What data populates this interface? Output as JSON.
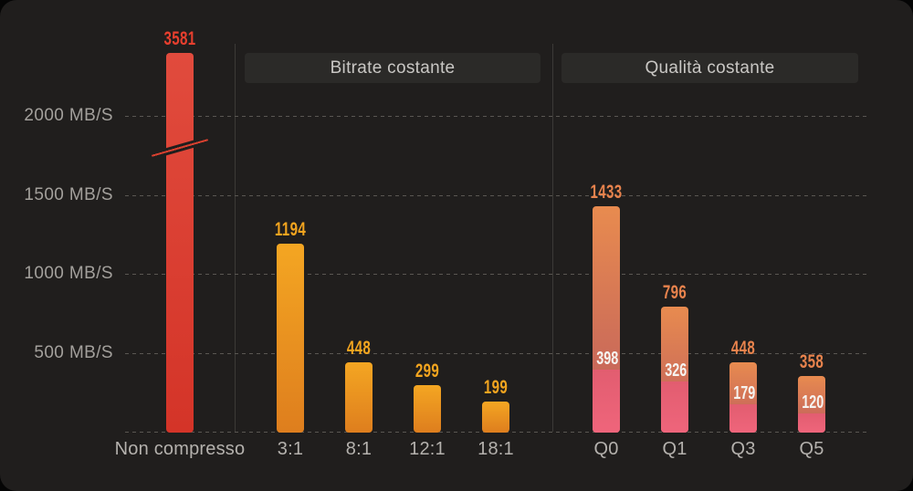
{
  "chart_data": {
    "type": "bar",
    "title": "",
    "unit": "MB/S",
    "legend": "none",
    "grid": "dashed-horizontal",
    "y_axis": {
      "ylim": [
        0,
        2450
      ],
      "ticks": [
        {
          "value": 500,
          "label": "500 MB/S"
        },
        {
          "value": 1000,
          "label": "1000 MB/S"
        },
        {
          "value": 1500,
          "label": "1500 MB/S"
        },
        {
          "value": 2000,
          "label": "2000 MB/S"
        }
      ],
      "axis_break": {
        "present": true,
        "on_bar": "Non compresso",
        "break_between": [
          1750,
          1850
        ]
      }
    },
    "sections": [
      {
        "label": "",
        "bars": [
          {
            "label": "Non compresso",
            "value": 3581,
            "palette": "red",
            "axis_break": true
          }
        ]
      },
      {
        "label": "Bitrate costante",
        "bars": [
          {
            "label": "3:1",
            "value": 1194,
            "palette": "amber"
          },
          {
            "label": "8:1",
            "value": 448,
            "palette": "amber"
          },
          {
            "label": "12:1",
            "value": 299,
            "palette": "amber"
          },
          {
            "label": "18:1",
            "value": 199,
            "palette": "amber"
          }
        ]
      },
      {
        "label": "Qualità costante",
        "bars": [
          {
            "label": "Q0",
            "value": 1433,
            "sub_value": 398,
            "palette": "coral"
          },
          {
            "label": "Q1",
            "value": 796,
            "sub_value": 326,
            "palette": "coral"
          },
          {
            "label": "Q3",
            "value": 448,
            "sub_value": 179,
            "palette": "coral"
          },
          {
            "label": "Q5",
            "value": 358,
            "sub_value": 120,
            "palette": "coral"
          }
        ]
      }
    ],
    "palettes": {
      "red": {
        "top": "#e14b3d",
        "bottom": "#d43428",
        "label": "#e73f2e"
      },
      "amber": {
        "top": "#f4a622",
        "bottom": "#de7e1e",
        "label": "#f3a51f"
      },
      "coral": {
        "top": "#e88b4f",
        "bottom": "#bd5c5e",
        "label": "#e8834d",
        "sub_top": "#e25d70",
        "sub_bottom": "#ef657b",
        "sub_label": "#f6f3f0"
      }
    },
    "colors": {
      "background": "#201e1d",
      "gridline": "#5a5752",
      "divider": "#3c3a37",
      "header_bg": "#2b2a28",
      "header_text": "#c9c7c4",
      "y_tick_text": "#a3a09c",
      "x_tick_text": "#b4b1ad"
    }
  }
}
